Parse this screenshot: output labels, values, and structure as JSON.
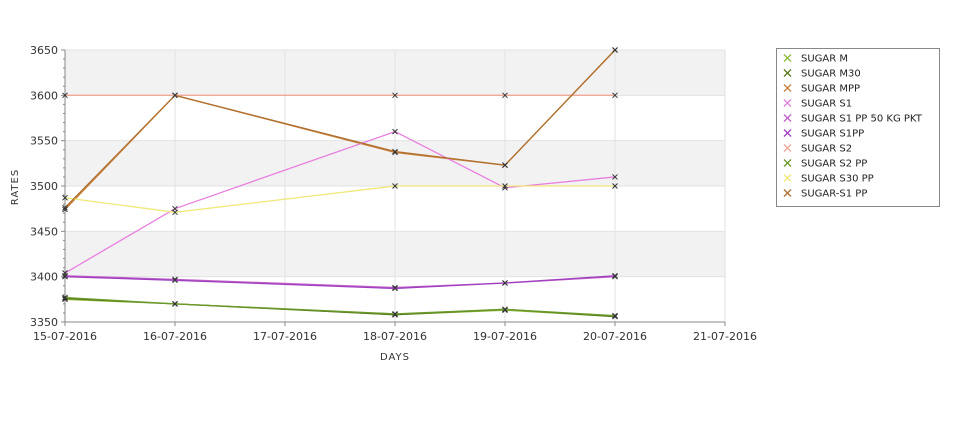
{
  "chart_data": {
    "type": "line",
    "title": "",
    "xlabel": "DAYS",
    "ylabel": "RATES",
    "x_categories": [
      "15-07-2016",
      "16-07-2016",
      "17-07-2016",
      "18-07-2016",
      "19-07-2016",
      "20-07-2016",
      "21-07-2016"
    ],
    "ylim": [
      3350,
      3650
    ],
    "yticks": [
      3350,
      3400,
      3450,
      3500,
      3550,
      3600,
      3650
    ],
    "grid": true,
    "legend_position": "right",
    "series": [
      {
        "name": "SUGAR M",
        "color": "#8FB83A",
        "values": [
          3375,
          3370,
          3358,
          3363,
          3356
        ],
        "x": [
          "15-07-2016",
          "16-07-2016",
          "18-07-2016",
          "19-07-2016",
          "20-07-2016"
        ]
      },
      {
        "name": "SUGAR M30",
        "color": "#5A7A1E",
        "values": [
          3376,
          3370,
          3358,
          3364,
          3356
        ],
        "x": [
          "15-07-2016",
          "16-07-2016",
          "18-07-2016",
          "19-07-2016",
          "20-07-2016"
        ]
      },
      {
        "name": "SUGAR MPP",
        "color": "#C8803A",
        "values": [
          3474,
          3600,
          3537,
          3523,
          3650
        ],
        "x": [
          "15-07-2016",
          "16-07-2016",
          "18-07-2016",
          "19-07-2016",
          "20-07-2016"
        ]
      },
      {
        "name": "SUGAR S1",
        "color": "#E87FE0",
        "values": [
          3404,
          3475,
          3560,
          3498,
          3510
        ],
        "x": [
          "15-07-2016",
          "16-07-2016",
          "18-07-2016",
          "19-07-2016",
          "20-07-2016"
        ]
      },
      {
        "name": "SUGAR S1 PP 50 KG PKT",
        "color": "#C060C8",
        "values": [
          3401,
          3397,
          3388,
          3393,
          3400
        ],
        "x": [
          "15-07-2016",
          "16-07-2016",
          "18-07-2016",
          "19-07-2016",
          "20-07-2016"
        ]
      },
      {
        "name": "SUGAR S1PP",
        "color": "#A040C0",
        "values": [
          3400,
          3396,
          3387,
          3393,
          3401
        ],
        "x": [
          "15-07-2016",
          "16-07-2016",
          "18-07-2016",
          "19-07-2016",
          "20-07-2016"
        ]
      },
      {
        "name": "SUGAR S2",
        "color": "#F0A898",
        "values": [
          3600,
          3600,
          3600,
          3600,
          3600
        ],
        "x": [
          "15-07-2016",
          "16-07-2016",
          "18-07-2016",
          "19-07-2016",
          "20-07-2016"
        ]
      },
      {
        "name": "SUGAR S2 PP",
        "color": "#6A9A2A",
        "values": [
          3377,
          3370,
          3359,
          3364,
          3357
        ],
        "x": [
          "15-07-2016",
          "16-07-2016",
          "18-07-2016",
          "19-07-2016",
          "20-07-2016"
        ]
      },
      {
        "name": "SUGAR S30 PP",
        "color": "#F0E878",
        "values": [
          3487,
          3471,
          3500,
          3500,
          3500
        ],
        "x": [
          "15-07-2016",
          "16-07-2016",
          "18-07-2016",
          "19-07-2016",
          "20-07-2016"
        ]
      },
      {
        "name": "SUGAR-S1 PP",
        "color": "#B07030",
        "values": [
          3476,
          3600,
          3538,
          3523,
          3650
        ],
        "x": [
          "15-07-2016",
          "16-07-2016",
          "18-07-2016",
          "19-07-2016",
          "20-07-2016"
        ]
      }
    ]
  }
}
